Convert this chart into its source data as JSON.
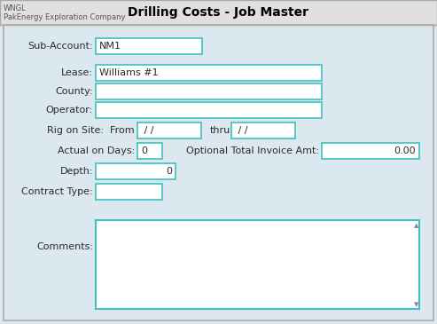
{
  "title": "Drilling Costs - Job Master",
  "app_name": "WNGL",
  "company": "PakEnergy Exploration Company",
  "bg_color": "#dce8f0",
  "header_bg": "#e8e8e8",
  "field_border_color": "#40c0c0",
  "field_bg": "#ffffff",
  "label_color": "#2a2a2a",
  "title_color": "#000000",
  "fig_w": 4.93,
  "fig_h": 3.65,
  "dpi": 100
}
